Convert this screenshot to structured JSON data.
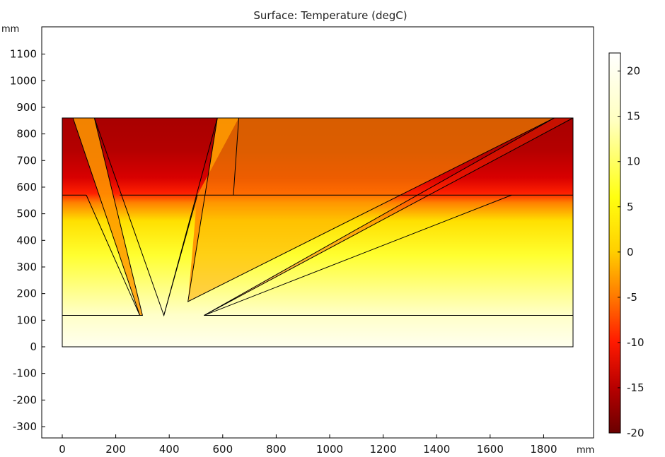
{
  "chart_data": {
    "type": "heatmap",
    "title": "Surface: Temperature (degC)",
    "x_unit": "mm",
    "y_unit": "mm",
    "xlim": [
      -80,
      2000
    ],
    "ylim": [
      -340,
      1210
    ],
    "x_ticks": [
      0,
      200,
      400,
      600,
      800,
      1000,
      1200,
      1400,
      1600,
      1800
    ],
    "x_tick_labels": [
      "0",
      "200",
      "400",
      "600",
      "800",
      "1000",
      "1200",
      "1400",
      "1600",
      "1800"
    ],
    "y_ticks": [
      -300,
      -200,
      -100,
      0,
      100,
      200,
      300,
      400,
      500,
      600,
      700,
      800,
      900,
      1000,
      1100
    ],
    "y_tick_labels": [
      "-300",
      "-200",
      "-100",
      "0",
      "100",
      "200",
      "300",
      "400",
      "500",
      "600",
      "700",
      "800",
      "900",
      "1000",
      "1100"
    ],
    "colorbar": {
      "range": [
        -20,
        22
      ],
      "ticks": [
        -20,
        -15,
        -10,
        -5,
        0,
        5,
        10,
        15,
        20
      ],
      "tick_labels": [
        "-20",
        "-15",
        "-10",
        "-5",
        "0",
        "5",
        "10",
        "15",
        "20"
      ],
      "colormap": [
        "#6a0000",
        "#b80000",
        "#ff1a00",
        "#ff7a00",
        "#ffd000",
        "#ffff10",
        "#ffffc0",
        "#ffffff"
      ]
    },
    "domain_boundaries": [
      {
        "name": "outer",
        "points": [
          [
            0,
            0
          ],
          [
            1910,
            0
          ],
          [
            1910,
            860
          ],
          [
            0,
            860
          ]
        ]
      },
      {
        "name": "layer-100",
        "points": [
          [
            0,
            118
          ],
          [
            290,
            118
          ]
        ]
      },
      {
        "name": "layer-100-right",
        "points": [
          [
            530,
            118
          ],
          [
            1910,
            118
          ]
        ]
      },
      {
        "name": "layer-570-left",
        "points": [
          [
            0,
            570
          ],
          [
            90,
            570
          ]
        ]
      },
      {
        "name": "layer-570-mid",
        "points": [
          [
            215,
            570
          ],
          [
            505,
            570
          ]
        ]
      },
      {
        "name": "layer-570-right",
        "points": [
          [
            640,
            570
          ],
          [
            1910,
            570
          ]
        ]
      },
      {
        "name": "channel-1",
        "points": [
          [
            40,
            860
          ],
          [
            290,
            118
          ],
          [
            300,
            118
          ],
          [
            120,
            860
          ]
        ]
      },
      {
        "name": "channel-2",
        "points": [
          [
            120,
            860
          ],
          [
            380,
            118
          ],
          [
            580,
            860
          ]
        ]
      },
      {
        "name": "channel-3",
        "points": [
          [
            580,
            860
          ],
          [
            470,
            170
          ],
          [
            1840,
            860
          ]
        ]
      },
      {
        "name": "channel-4",
        "points": [
          [
            660,
            860
          ],
          [
            640,
            570
          ],
          [
            505,
            570
          ],
          [
            380,
            118
          ]
        ]
      },
      {
        "name": "channel-5",
        "points": [
          [
            1840,
            860
          ],
          [
            530,
            118
          ],
          [
            1910,
            860
          ]
        ]
      },
      {
        "name": "channel-6",
        "points": [
          [
            1680,
            570
          ],
          [
            530,
            118
          ]
        ]
      },
      {
        "name": "wedge-left",
        "points": [
          [
            90,
            570
          ],
          [
            290,
            118
          ]
        ]
      }
    ]
  }
}
